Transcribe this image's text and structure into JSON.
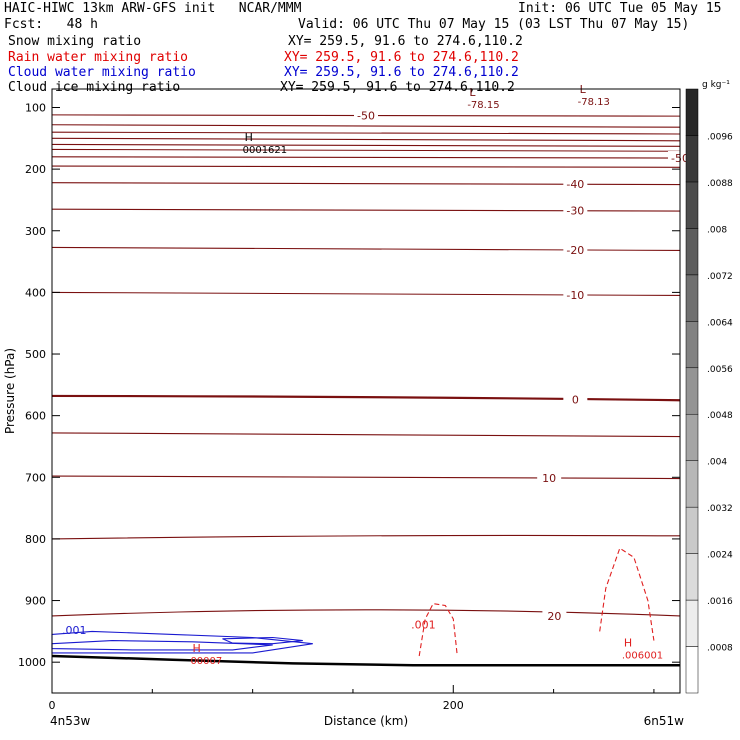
{
  "header": {
    "model": "HAIC-HIWC 13km ARW-GFS init   NCAR/MMM",
    "init": "Init: 06 UTC Tue 05 May 15",
    "fcst": "Fcst:   48 h",
    "valid": "Valid: 06 UTC Thu 07 May 15 (03 LST Thu 07 May 15)"
  },
  "fields": [
    {
      "label": "Snow mixing ratio",
      "xy": "XY= 259.5, 91.6 to 274.6,110.2",
      "color": "#000000"
    },
    {
      "label": "Rain water mixing ratio",
      "xy": "XY= 259.5, 91.6 to 274.6,110.2",
      "color": "#e00000"
    },
    {
      "label": "Cloud water mixing ratio",
      "xy": "XY= 259.5, 91.6 to 274.6,110.2",
      "color": "#0000d0"
    },
    {
      "label": "Cloud ice mixing ratio",
      "xy": "XY= 259.5, 91.6 to 274.6,110.2",
      "color": "#000000"
    }
  ],
  "chart_data": {
    "type": "contour",
    "xlabel": "Distance (km)",
    "ylabel": "Pressure (hPa)",
    "x_ticks": [
      0,
      200
    ],
    "xlim": [
      0,
      313
    ],
    "y_ticks": [
      100,
      200,
      300,
      400,
      500,
      600,
      700,
      800,
      900,
      1000
    ],
    "ylim": [
      1050,
      70
    ],
    "y_scale": "linear",
    "x_endpoint_labels": [
      "4n53w",
      "6n51w"
    ],
    "temperature_contours": [
      {
        "label": "-50",
        "label_x": 180,
        "pressure": [
          112,
          113,
          114
        ]
      },
      {
        "label": "",
        "label_x": 0,
        "pressure": [
          128,
          130,
          132
        ]
      },
      {
        "label": "",
        "label_x": 0,
        "pressure": [
          140,
          141,
          143
        ]
      },
      {
        "label": "",
        "label_x": 0,
        "pressure": [
          150,
          152,
          154
        ]
      },
      {
        "label": "",
        "label_x": 0,
        "pressure": [
          160,
          162,
          163
        ]
      },
      {
        "label": "",
        "label_x": 0,
        "pressure": [
          168,
          170,
          171
        ]
      },
      {
        "label": "-50",
        "label_x": 360,
        "pressure": [
          180,
          181,
          182
        ]
      },
      {
        "label": "",
        "label_x": 0,
        "pressure": [
          195,
          196,
          197
        ]
      },
      {
        "label": "-40",
        "label_x": 300,
        "pressure": [
          222,
          223,
          225
        ]
      },
      {
        "label": "-30",
        "label_x": 300,
        "pressure": [
          265,
          266,
          268
        ]
      },
      {
        "label": "-20",
        "label_x": 300,
        "pressure": [
          327,
          329,
          332
        ]
      },
      {
        "label": "-10",
        "label_x": 300,
        "pressure": [
          400,
          402,
          405
        ]
      },
      {
        "label": "0",
        "label_x": 300,
        "pressure": [
          568,
          570,
          575
        ]
      },
      {
        "label": "",
        "label_x": 0,
        "pressure": [
          628,
          630,
          634
        ]
      },
      {
        "label": "10",
        "label_x": 285,
        "pressure": [
          698,
          700,
          702
        ]
      },
      {
        "label": "",
        "label_x": 0,
        "pressure": [
          800,
          795,
          795
        ]
      },
      {
        "label": "20",
        "label_x": 288,
        "pressure": [
          925,
          915,
          925
        ]
      }
    ],
    "temperature_labels": [
      "-50",
      "-40",
      "-30",
      "-20",
      "-10",
      "0",
      "10",
      "20"
    ],
    "extrema": [
      {
        "type": "H",
        "value": "0001621",
        "x": 96,
        "pressure": 158
      },
      {
        "type": "L",
        "value": "-78.15",
        "x": 208,
        "pressure": 85
      },
      {
        "type": "L",
        "value": "-78.13",
        "x": 263,
        "pressure": 80
      },
      {
        "type": "H",
        "value": "00007",
        "x": 70,
        "pressure": 987
      },
      {
        "type": "H",
        "value": ".006001",
        "x": 285,
        "pressure": 978
      }
    ],
    "rain_water_labels": [
      ".001"
    ],
    "cloud_water_labels": [
      ".001"
    ],
    "colorbar": {
      "unit": "g kg⁻¹",
      "levels": [
        ".0008",
        ".0016",
        ".0024",
        ".0032",
        ".004",
        ".0048",
        ".0056",
        ".0064",
        ".0072",
        ".008",
        ".0088",
        ".0096"
      ]
    }
  }
}
